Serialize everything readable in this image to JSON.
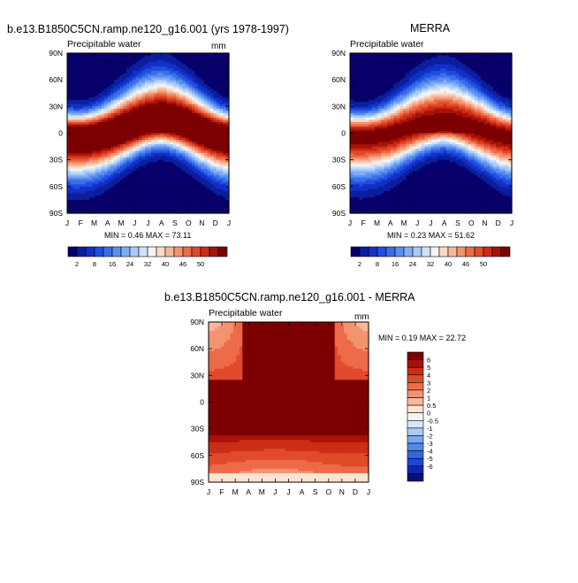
{
  "panels": [
    {
      "title": "b.e13.B1850C5CN.ramp.ne120_g16.001 (yrs 1978-1997)",
      "subtitle": "Precipitable water",
      "units": "mm",
      "stats": "MIN =   0.46 MAX =  73.11"
    },
    {
      "title": "MERRA",
      "subtitle": "Precipitable water",
      "units": "",
      "stats": "MIN =   0.23 MAX =  51.62"
    },
    {
      "title": "b.e13.B1850C5CN.ramp.ne120_g16.001 - MERRA",
      "subtitle": "Precipitable water",
      "units": "mm",
      "stats": "MIN =   0.19 MAX =  22.72"
    }
  ],
  "chart_data": [
    {
      "type": "heatmap",
      "title": "b.e13.B1850C5CN.ramp.ne120_g16.001 (yrs 1978-1997)",
      "subtitle": "Precipitable water",
      "units": "mm",
      "x_ticks": [
        "J",
        "F",
        "M",
        "A",
        "M",
        "J",
        "J",
        "A",
        "S",
        "O",
        "N",
        "D",
        "J"
      ],
      "y_ticks": [
        "90N",
        "60N",
        "30N",
        "0",
        "30S",
        "60S",
        "90S"
      ],
      "ylim": [
        -90,
        90
      ],
      "itcz_lat_by_month": [
        -3,
        -3,
        -2,
        0,
        4,
        8,
        12,
        14,
        12,
        8,
        3,
        -1,
        -3
      ],
      "min": 0.46,
      "max": 73.11,
      "colorbar_labels": [
        "2",
        "8",
        "16",
        "24",
        "32",
        "40",
        "46",
        "50"
      ],
      "colorbar_levels": [
        2,
        4,
        6,
        8,
        12,
        16,
        20,
        24,
        28,
        32,
        36,
        40,
        44,
        46,
        48,
        50
      ]
    },
    {
      "type": "heatmap",
      "title": "MERRA",
      "subtitle": "Precipitable water",
      "units": "",
      "x_ticks": [
        "J",
        "F",
        "M",
        "A",
        "M",
        "J",
        "J",
        "A",
        "S",
        "O",
        "N",
        "D",
        "J"
      ],
      "y_ticks": [
        "90N",
        "60N",
        "30N",
        "0",
        "30S",
        "60S",
        "90S"
      ],
      "ylim": [
        -90,
        90
      ],
      "itcz_lat_by_month": [
        -3,
        -3,
        -2,
        0,
        4,
        8,
        11,
        13,
        11,
        7,
        3,
        -1,
        -3
      ],
      "min": 0.23,
      "max": 51.62,
      "colorbar_labels": [
        "2",
        "8",
        "16",
        "24",
        "32",
        "40",
        "46",
        "50"
      ],
      "colorbar_levels": [
        2,
        4,
        6,
        8,
        12,
        16,
        20,
        24,
        28,
        32,
        36,
        40,
        44,
        46,
        48,
        50
      ]
    },
    {
      "type": "heatmap",
      "title": "b.e13.B1850C5CN.ramp.ne120_g16.001 - MERRA",
      "subtitle": "Precipitable water",
      "units": "mm",
      "x_ticks": [
        "J",
        "F",
        "M",
        "A",
        "M",
        "J",
        "J",
        "A",
        "S",
        "O",
        "N",
        "D",
        "J"
      ],
      "y_ticks": [
        "90N",
        "60N",
        "30N",
        "0",
        "30S",
        "60S",
        "90S"
      ],
      "ylim": [
        -90,
        90
      ],
      "min": 0.19,
      "max": 22.72,
      "colorbar_labels": [
        "6",
        "5",
        "4",
        "3",
        "2",
        "1",
        "0.5",
        "0",
        "-0.5",
        "-1",
        "-2",
        "-3",
        "-4",
        "-5",
        "-6"
      ]
    }
  ],
  "colors": {
    "full_scale": [
      "#08006b",
      "#0b1f9e",
      "#1030c8",
      "#1f4fe0",
      "#3a6fe8",
      "#5a8ef0",
      "#80aef5",
      "#a8cbf8",
      "#cfe2fa",
      "#f4f4f4",
      "#fbd9c6",
      "#f8b79a",
      "#f39370",
      "#ed6b48",
      "#e14a2a",
      "#cc2d17",
      "#a81208",
      "#7d0000"
    ],
    "diff_scale": [
      "#7d0000",
      "#a81208",
      "#cc2d17",
      "#e14a2a",
      "#ed6b48",
      "#f39370",
      "#f8b79a",
      "#fde3d2",
      "#f4f4f4",
      "#d8e6f8",
      "#a8cbf8",
      "#7ea7f2",
      "#5587ec",
      "#3565e4",
      "#1f45d5",
      "#0e27b0",
      "#07117d"
    ]
  }
}
